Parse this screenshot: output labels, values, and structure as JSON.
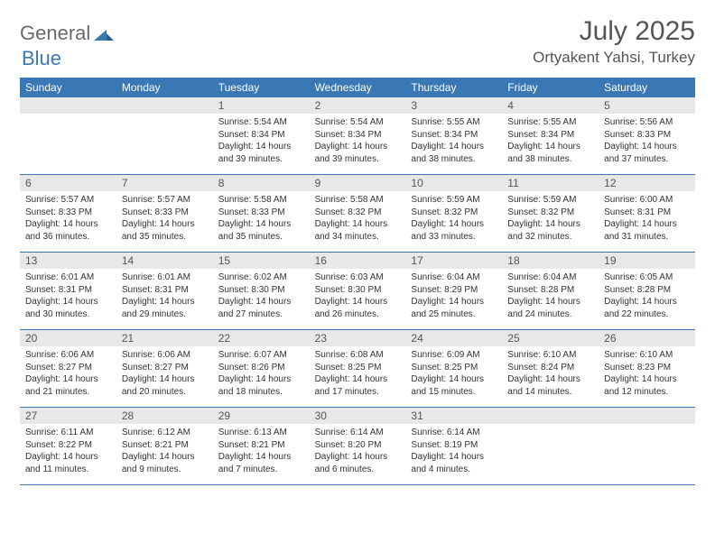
{
  "logo": {
    "general": "General",
    "blue": "Blue"
  },
  "title": "July 2025",
  "location": "Ortyakent Yahsi, Turkey",
  "colors": {
    "header_bg": "#3a78b5",
    "header_text": "#ffffff",
    "daynum_bg": "#e8e8e8",
    "cell_border": "#3a78b5",
    "text": "#333333",
    "title_text": "#555555"
  },
  "day_headers": [
    "Sunday",
    "Monday",
    "Tuesday",
    "Wednesday",
    "Thursday",
    "Friday",
    "Saturday"
  ],
  "leading_blanks": 2,
  "days": [
    {
      "n": 1,
      "sunrise": "5:54 AM",
      "sunset": "8:34 PM",
      "daylight": "14 hours and 39 minutes."
    },
    {
      "n": 2,
      "sunrise": "5:54 AM",
      "sunset": "8:34 PM",
      "daylight": "14 hours and 39 minutes."
    },
    {
      "n": 3,
      "sunrise": "5:55 AM",
      "sunset": "8:34 PM",
      "daylight": "14 hours and 38 minutes."
    },
    {
      "n": 4,
      "sunrise": "5:55 AM",
      "sunset": "8:34 PM",
      "daylight": "14 hours and 38 minutes."
    },
    {
      "n": 5,
      "sunrise": "5:56 AM",
      "sunset": "8:33 PM",
      "daylight": "14 hours and 37 minutes."
    },
    {
      "n": 6,
      "sunrise": "5:57 AM",
      "sunset": "8:33 PM",
      "daylight": "14 hours and 36 minutes."
    },
    {
      "n": 7,
      "sunrise": "5:57 AM",
      "sunset": "8:33 PM",
      "daylight": "14 hours and 35 minutes."
    },
    {
      "n": 8,
      "sunrise": "5:58 AM",
      "sunset": "8:33 PM",
      "daylight": "14 hours and 35 minutes."
    },
    {
      "n": 9,
      "sunrise": "5:58 AM",
      "sunset": "8:32 PM",
      "daylight": "14 hours and 34 minutes."
    },
    {
      "n": 10,
      "sunrise": "5:59 AM",
      "sunset": "8:32 PM",
      "daylight": "14 hours and 33 minutes."
    },
    {
      "n": 11,
      "sunrise": "5:59 AM",
      "sunset": "8:32 PM",
      "daylight": "14 hours and 32 minutes."
    },
    {
      "n": 12,
      "sunrise": "6:00 AM",
      "sunset": "8:31 PM",
      "daylight": "14 hours and 31 minutes."
    },
    {
      "n": 13,
      "sunrise": "6:01 AM",
      "sunset": "8:31 PM",
      "daylight": "14 hours and 30 minutes."
    },
    {
      "n": 14,
      "sunrise": "6:01 AM",
      "sunset": "8:31 PM",
      "daylight": "14 hours and 29 minutes."
    },
    {
      "n": 15,
      "sunrise": "6:02 AM",
      "sunset": "8:30 PM",
      "daylight": "14 hours and 27 minutes."
    },
    {
      "n": 16,
      "sunrise": "6:03 AM",
      "sunset": "8:30 PM",
      "daylight": "14 hours and 26 minutes."
    },
    {
      "n": 17,
      "sunrise": "6:04 AM",
      "sunset": "8:29 PM",
      "daylight": "14 hours and 25 minutes."
    },
    {
      "n": 18,
      "sunrise": "6:04 AM",
      "sunset": "8:28 PM",
      "daylight": "14 hours and 24 minutes."
    },
    {
      "n": 19,
      "sunrise": "6:05 AM",
      "sunset": "8:28 PM",
      "daylight": "14 hours and 22 minutes."
    },
    {
      "n": 20,
      "sunrise": "6:06 AM",
      "sunset": "8:27 PM",
      "daylight": "14 hours and 21 minutes."
    },
    {
      "n": 21,
      "sunrise": "6:06 AM",
      "sunset": "8:27 PM",
      "daylight": "14 hours and 20 minutes."
    },
    {
      "n": 22,
      "sunrise": "6:07 AM",
      "sunset": "8:26 PM",
      "daylight": "14 hours and 18 minutes."
    },
    {
      "n": 23,
      "sunrise": "6:08 AM",
      "sunset": "8:25 PM",
      "daylight": "14 hours and 17 minutes."
    },
    {
      "n": 24,
      "sunrise": "6:09 AM",
      "sunset": "8:25 PM",
      "daylight": "14 hours and 15 minutes."
    },
    {
      "n": 25,
      "sunrise": "6:10 AM",
      "sunset": "8:24 PM",
      "daylight": "14 hours and 14 minutes."
    },
    {
      "n": 26,
      "sunrise": "6:10 AM",
      "sunset": "8:23 PM",
      "daylight": "14 hours and 12 minutes."
    },
    {
      "n": 27,
      "sunrise": "6:11 AM",
      "sunset": "8:22 PM",
      "daylight": "14 hours and 11 minutes."
    },
    {
      "n": 28,
      "sunrise": "6:12 AM",
      "sunset": "8:21 PM",
      "daylight": "14 hours and 9 minutes."
    },
    {
      "n": 29,
      "sunrise": "6:13 AM",
      "sunset": "8:21 PM",
      "daylight": "14 hours and 7 minutes."
    },
    {
      "n": 30,
      "sunrise": "6:14 AM",
      "sunset": "8:20 PM",
      "daylight": "14 hours and 6 minutes."
    },
    {
      "n": 31,
      "sunrise": "6:14 AM",
      "sunset": "8:19 PM",
      "daylight": "14 hours and 4 minutes."
    }
  ],
  "labels": {
    "sunrise": "Sunrise:",
    "sunset": "Sunset:",
    "daylight": "Daylight:"
  }
}
